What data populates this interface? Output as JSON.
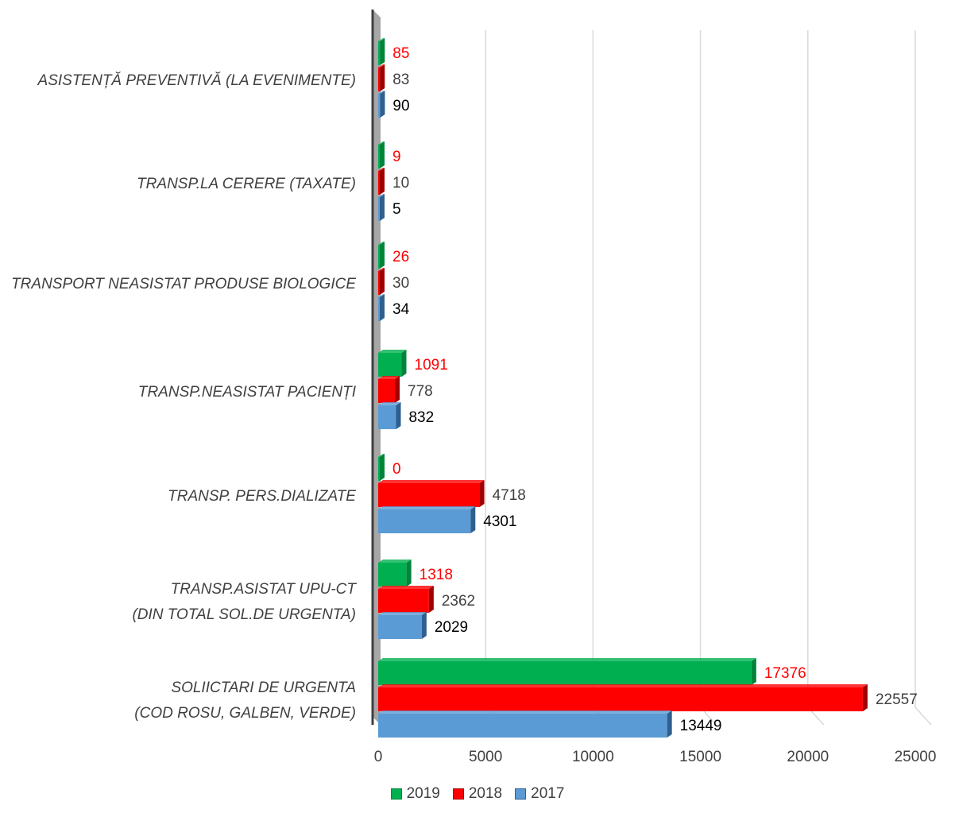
{
  "chart_data": {
    "type": "bar",
    "orientation": "horizontal",
    "title": "",
    "xlabel": "",
    "ylabel": "",
    "xlim": [
      0,
      25000
    ],
    "x_ticks": [
      "0",
      "5000",
      "10000",
      "15000",
      "20000",
      "25000"
    ],
    "grid": true,
    "legend_position": "bottom",
    "categories": [
      [
        "ASISTENȚĂ PREVENTIVĂ (LA EVENIMENTE)"
      ],
      [
        "TRANSP.LA CERERE (TAXATE)"
      ],
      [
        "TRANSPORT NEASISTAT PRODUSE BIOLOGICE"
      ],
      [
        "TRANSP.NEASISTAT PACIENȚI"
      ],
      [
        "TRANSP. PERS.DIALIZATE"
      ],
      [
        "TRANSP.ASISTAT UPU-CT",
        "(DIN TOTAL SOL.DE URGENTA)"
      ],
      [
        "SOLIICTARI DE URGENTA",
        "(COD ROSU, GALBEN, VERDE)"
      ]
    ],
    "series": [
      {
        "name": "2019",
        "color": "#00b050",
        "side_color": "#00843a",
        "label_color": "#ff0000",
        "values": [
          85,
          9,
          26,
          1091,
          0,
          1318,
          17376
        ]
      },
      {
        "name": "2018",
        "color": "#ff0000",
        "side_color": "#a00000",
        "label_color": "#404040",
        "values": [
          83,
          10,
          30,
          778,
          4718,
          2362,
          22557
        ]
      },
      {
        "name": "2017",
        "color": "#5b9bd5",
        "side_color": "#2e5f8f",
        "label_color": "#000000",
        "values": [
          90,
          5,
          34,
          832,
          4301,
          2029,
          13449
        ]
      }
    ],
    "legend": [
      "2019",
      "2018",
      "2017"
    ]
  }
}
